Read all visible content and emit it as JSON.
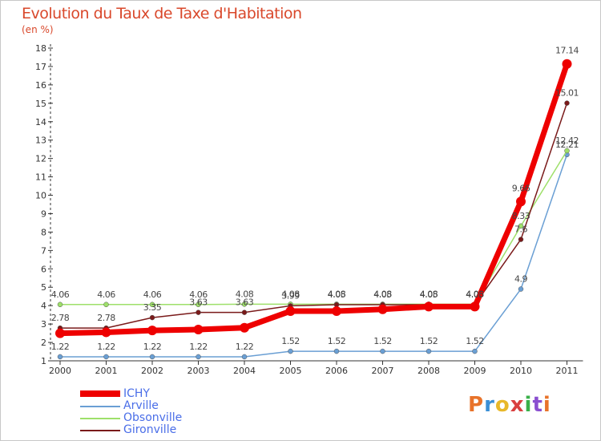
{
  "title": "Evolution du Taux de Taxe d'Habitation",
  "subtitle": "(en %)",
  "logo": "Proxiti",
  "logo_colors": [
    "#e8732a",
    "#3a8fd6",
    "#e8b82a",
    "#d94040",
    "#3ab04a",
    "#8a4fd0",
    "#e8732a"
  ],
  "chart_data": {
    "type": "line",
    "title": "Evolution du Taux de Taxe d'Habitation",
    "ylabel": "(en %)",
    "xlabel": "",
    "x": [
      "2000",
      "2001",
      "2002",
      "2003",
      "2004",
      "2005",
      "2006",
      "2007",
      "2008",
      "2009",
      "2010",
      "2011"
    ],
    "ylim": [
      1,
      18
    ],
    "yticks": [
      1,
      2,
      3,
      4,
      5,
      6,
      7,
      8,
      9,
      10,
      11,
      12,
      13,
      14,
      15,
      16,
      17,
      18
    ],
    "grid": false,
    "legend_position": "bottom-left",
    "series": [
      {
        "name": "ICHY",
        "color": "#ee0000",
        "width": 7,
        "values": [
          2.5,
          2.55,
          2.65,
          2.7,
          2.8,
          3.7,
          3.7,
          3.8,
          3.95,
          3.95,
          9.66,
          17.14
        ],
        "labels": [
          "2.5",
          "2.55",
          "2.65",
          "2.7",
          "2.8",
          "3.7",
          "3.7",
          "3.8",
          "3.95",
          "3.95",
          "9.66",
          "17.14"
        ],
        "show_labels": [
          false,
          false,
          false,
          false,
          false,
          false,
          false,
          false,
          false,
          false,
          true,
          true
        ]
      },
      {
        "name": "Arville",
        "color": "#6a9fd4",
        "width": 1.5,
        "values": [
          1.22,
          1.22,
          1.22,
          1.22,
          1.22,
          1.52,
          1.52,
          1.52,
          1.52,
          1.52,
          4.9,
          12.21
        ],
        "labels": [
          "1.22",
          "1.22",
          "1.22",
          "1.22",
          "1.22",
          "1.52",
          "1.52",
          "1.52",
          "1.52",
          "1.52",
          "4.9",
          "12.21"
        ],
        "show_labels": [
          true,
          true,
          true,
          true,
          true,
          true,
          true,
          true,
          true,
          true,
          true,
          true
        ]
      },
      {
        "name": "Obsonville",
        "color": "#9ee06a",
        "width": 1.5,
        "values": [
          4.06,
          4.06,
          4.06,
          4.06,
          4.08,
          4.08,
          4.08,
          4.08,
          4.08,
          4.08,
          8.33,
          12.42
        ],
        "labels": [
          "4.06",
          "4.06",
          "4.06",
          "4.06",
          "4.08",
          "4.08",
          "4.08",
          "4.08",
          "4.08",
          "4.08",
          "8.33",
          "12.42"
        ],
        "show_labels": [
          true,
          true,
          true,
          true,
          true,
          true,
          true,
          true,
          true,
          true,
          true,
          true
        ]
      },
      {
        "name": "Gironville",
        "color": "#7a1a1a",
        "width": 1.5,
        "values": [
          2.78,
          2.78,
          3.35,
          3.63,
          3.63,
          3.99,
          4.05,
          4.05,
          4.05,
          4.05,
          7.6,
          15.01
        ],
        "labels": [
          "2.78",
          "2.78",
          "3.35",
          "3.63",
          "3.63",
          "3.99",
          "4.05",
          "4.05",
          "4.05",
          "4.05",
          "7.6",
          "15.01"
        ],
        "show_labels": [
          true,
          true,
          true,
          true,
          true,
          true,
          true,
          true,
          true,
          true,
          true,
          true
        ]
      }
    ]
  }
}
